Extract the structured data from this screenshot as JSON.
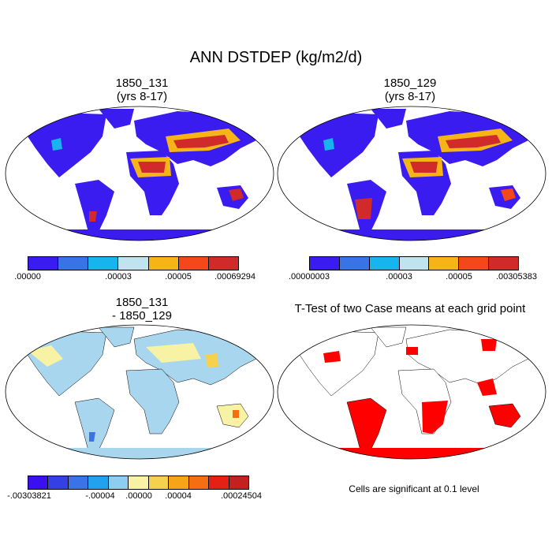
{
  "figure": {
    "title": "ANN DSTDEP (kg/m2/d)"
  },
  "panels": {
    "tl": {
      "title_line1": "1850_131",
      "title_line2": "(yrs 8-17)"
    },
    "tr": {
      "title_line1": "1850_129",
      "title_line2": "(yrs 8-17)"
    },
    "bl": {
      "title_line1": "1850_131",
      "title_line2": "- 1850_129"
    },
    "br": {
      "title_line1": "T-Test of two Case means at each grid point",
      "note": "Cells are significant at 0.1 level"
    }
  },
  "colorbars": {
    "top_left": {
      "colors": [
        "#3a1bf0",
        "#3a73e8",
        "#18b4ee",
        "#bfe4f0",
        "#f6b418",
        "#f4471a",
        "#d02a2a"
      ],
      "labels": [
        ".00000",
        ".00003",
        ".00005",
        ".00069294"
      ]
    },
    "top_right": {
      "colors": [
        "#3a1bf0",
        "#3a73e8",
        "#18b4ee",
        "#bfe4f0",
        "#f6b418",
        "#f4471a",
        "#d02a2a"
      ],
      "labels": [
        ".00000003",
        ".00003",
        ".00005",
        ".00305383"
      ]
    },
    "bottom_left": {
      "colors": [
        "#3a0ff0",
        "#3340e6",
        "#3a73e8",
        "#22a1ee",
        "#8ccdf0",
        "#f8f2a4",
        "#f5d24d",
        "#f6a418",
        "#f56e12",
        "#e52015",
        "#c42020"
      ],
      "labels": [
        "-.00303821",
        "-.00004",
        ".00000",
        ".00004",
        ".00024504"
      ]
    }
  }
}
